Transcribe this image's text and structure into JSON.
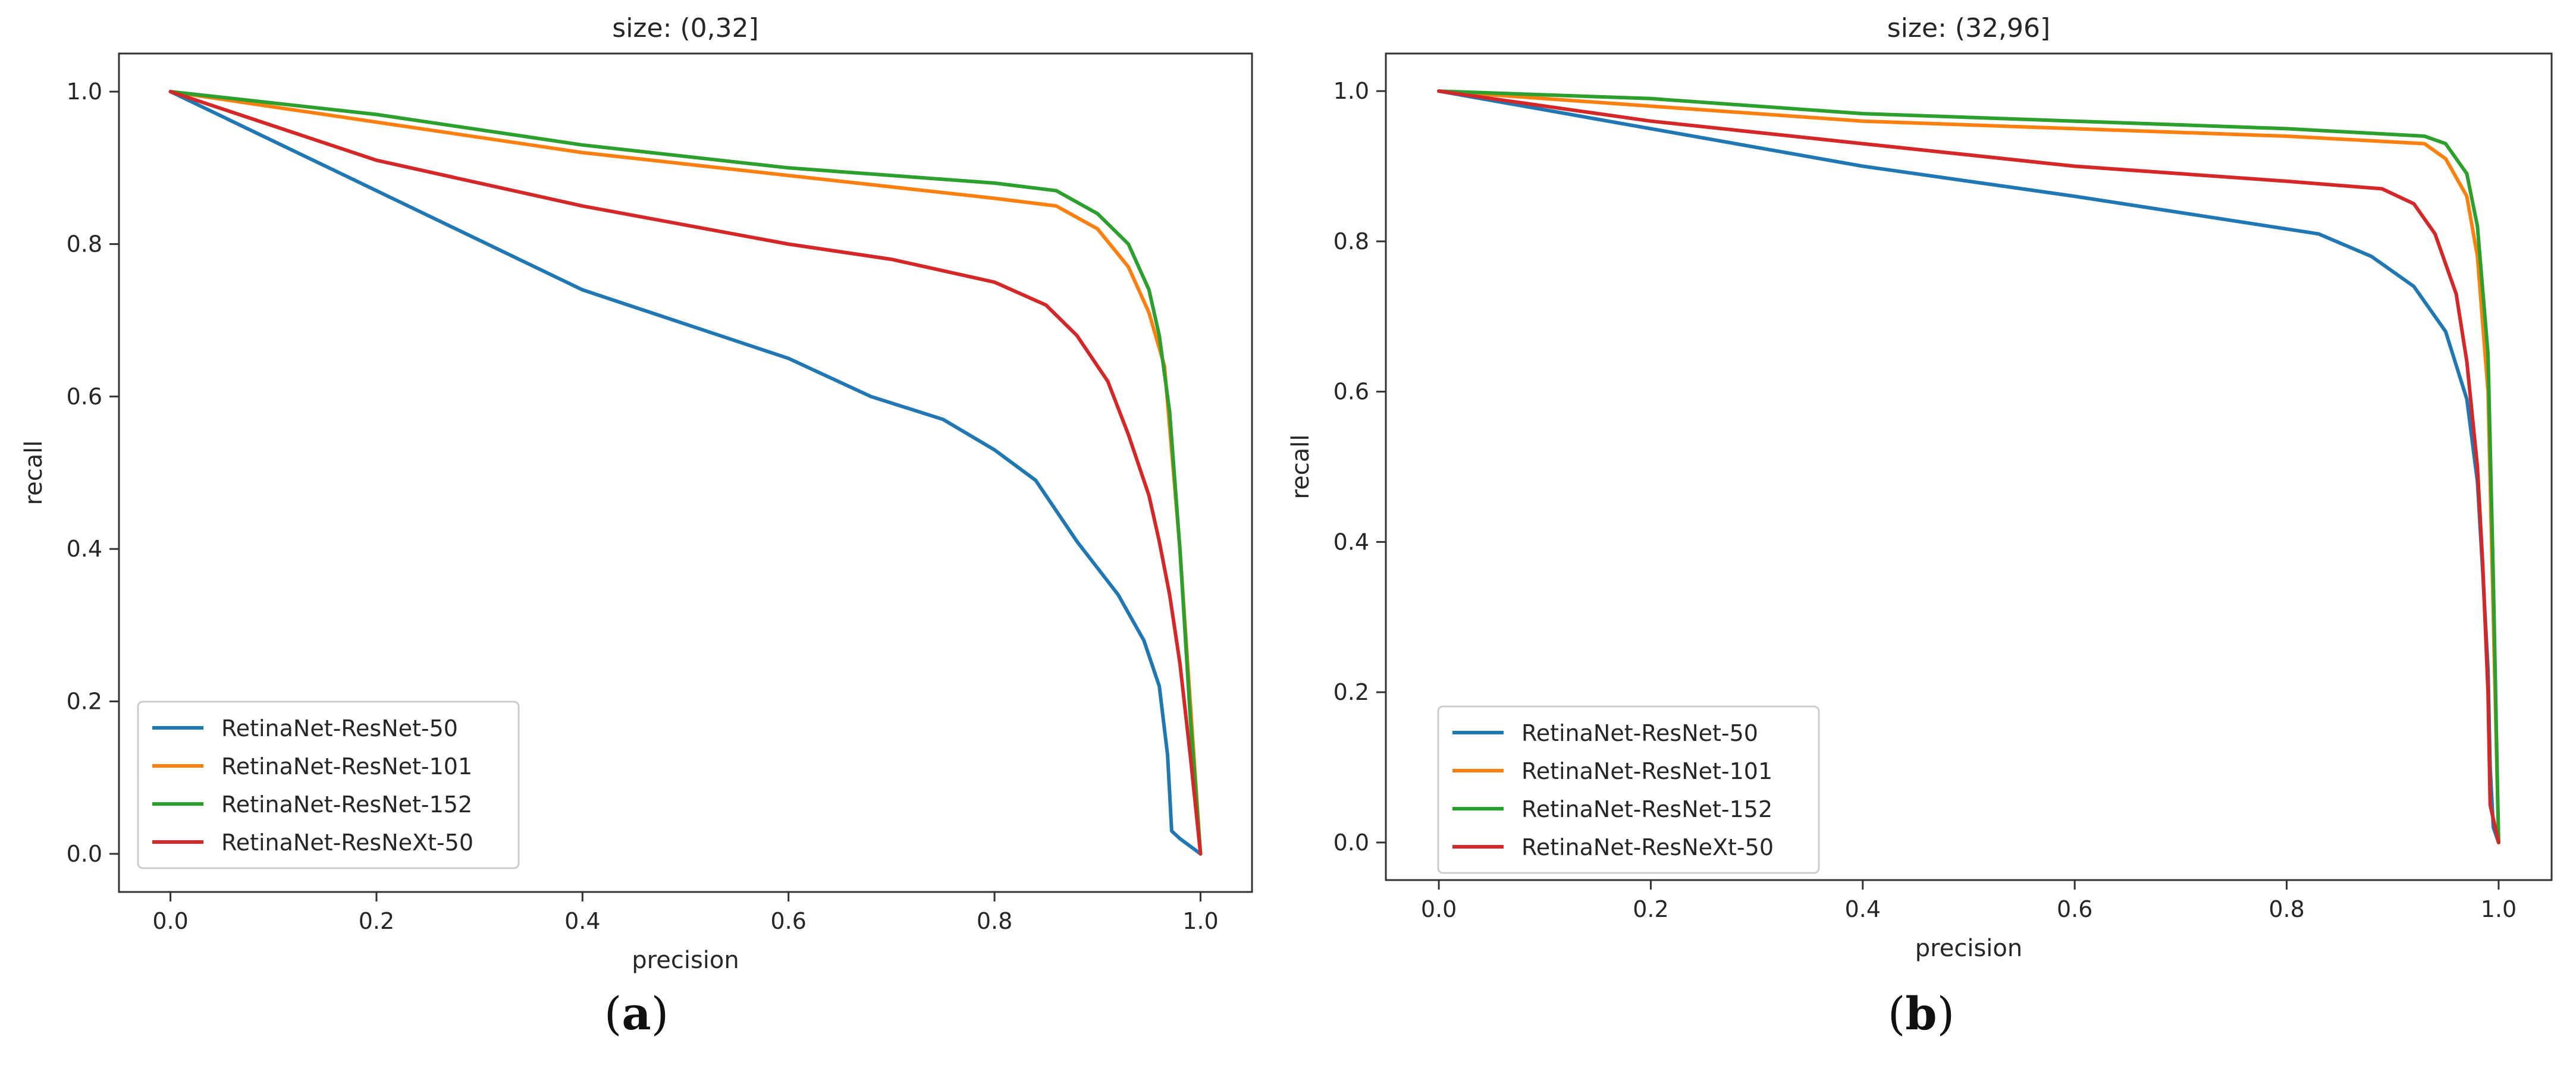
{
  "panels": [
    {
      "caption_open": "(",
      "caption_letter": "a",
      "caption_close": ")"
    },
    {
      "caption_open": "(",
      "caption_letter": "b",
      "caption_close": ")"
    }
  ],
  "chart_data": [
    {
      "type": "line",
      "title": "size: (0,32]",
      "xlabel": "precision",
      "ylabel": "recall",
      "xlim": [
        -0.05,
        1.05
      ],
      "ylim": [
        -0.05,
        1.05
      ],
      "xticks": [
        0.0,
        0.2,
        0.4,
        0.6,
        0.8,
        1.0
      ],
      "yticks": [
        0.0,
        0.2,
        0.4,
        0.6,
        0.8,
        1.0
      ],
      "tick_labels_x": [
        "0.0",
        "0.2",
        "0.4",
        "0.6",
        "0.8",
        "1.0"
      ],
      "tick_labels_y": [
        "0.0",
        "0.2",
        "0.4",
        "0.6",
        "0.8",
        "1.0"
      ],
      "grid": false,
      "legend_position": "lower-left",
      "series": [
        {
          "name": "RetinaNet-ResNet-50",
          "color": "#1f77b4",
          "x": [
            0.0,
            0.2,
            0.4,
            0.6,
            0.68,
            0.75,
            0.8,
            0.84,
            0.88,
            0.92,
            0.945,
            0.96,
            0.968,
            0.97,
            0.972,
            0.98,
            1.0
          ],
          "y": [
            1.0,
            0.87,
            0.74,
            0.65,
            0.6,
            0.57,
            0.53,
            0.49,
            0.41,
            0.34,
            0.28,
            0.22,
            0.13,
            0.08,
            0.03,
            0.02,
            0.0
          ]
        },
        {
          "name": "RetinaNet-ResNet-101",
          "color": "#ff7f0e",
          "x": [
            0.0,
            0.2,
            0.4,
            0.6,
            0.8,
            0.86,
            0.9,
            0.93,
            0.95,
            0.965,
            0.97,
            0.98,
            0.99,
            1.0
          ],
          "y": [
            1.0,
            0.96,
            0.92,
            0.89,
            0.86,
            0.85,
            0.82,
            0.77,
            0.71,
            0.64,
            0.56,
            0.4,
            0.2,
            0.0
          ]
        },
        {
          "name": "RetinaNet-ResNet-152",
          "color": "#2ca02c",
          "x": [
            0.0,
            0.2,
            0.4,
            0.6,
            0.8,
            0.86,
            0.9,
            0.93,
            0.95,
            0.96,
            0.97,
            0.98,
            0.99,
            1.0
          ],
          "y": [
            1.0,
            0.97,
            0.93,
            0.9,
            0.88,
            0.87,
            0.84,
            0.8,
            0.74,
            0.68,
            0.58,
            0.4,
            0.18,
            0.0
          ]
        },
        {
          "name": "RetinaNet-ResNeXt-50",
          "color": "#d62728",
          "x": [
            0.0,
            0.2,
            0.4,
            0.6,
            0.7,
            0.8,
            0.85,
            0.88,
            0.91,
            0.93,
            0.95,
            0.96,
            0.97,
            0.98,
            0.99,
            1.0
          ],
          "y": [
            1.0,
            0.91,
            0.85,
            0.8,
            0.78,
            0.75,
            0.72,
            0.68,
            0.62,
            0.55,
            0.47,
            0.41,
            0.34,
            0.25,
            0.13,
            0.0
          ]
        }
      ]
    },
    {
      "type": "line",
      "title": "size: (32,96]",
      "xlabel": "precision",
      "ylabel": "recall",
      "xlim": [
        -0.05,
        1.05
      ],
      "ylim": [
        -0.05,
        1.05
      ],
      "xticks": [
        0.0,
        0.2,
        0.4,
        0.6,
        0.8,
        1.0
      ],
      "yticks": [
        0.0,
        0.2,
        0.4,
        0.6,
        0.8,
        1.0
      ],
      "tick_labels_x": [
        "0.0",
        "0.2",
        "0.4",
        "0.6",
        "0.8",
        "1.0"
      ],
      "tick_labels_y": [
        "0.0",
        "0.2",
        "0.4",
        "0.6",
        "0.8",
        "1.0"
      ],
      "grid": false,
      "legend_position": "lower-left",
      "series": [
        {
          "name": "RetinaNet-ResNet-50",
          "color": "#1f77b4",
          "x": [
            0.0,
            0.2,
            0.4,
            0.6,
            0.83,
            0.88,
            0.92,
            0.95,
            0.97,
            0.98,
            0.985,
            0.99,
            0.992,
            0.995,
            1.0
          ],
          "y": [
            1.0,
            0.95,
            0.9,
            0.86,
            0.81,
            0.78,
            0.74,
            0.68,
            0.59,
            0.48,
            0.36,
            0.23,
            0.1,
            0.02,
            0.0
          ]
        },
        {
          "name": "RetinaNet-ResNet-101",
          "color": "#ff7f0e",
          "x": [
            0.0,
            0.2,
            0.4,
            0.6,
            0.8,
            0.93,
            0.95,
            0.97,
            0.98,
            0.99,
            0.995,
            1.0
          ],
          "y": [
            1.0,
            0.98,
            0.96,
            0.95,
            0.94,
            0.93,
            0.91,
            0.86,
            0.78,
            0.6,
            0.3,
            0.0
          ]
        },
        {
          "name": "RetinaNet-ResNet-152",
          "color": "#2ca02c",
          "x": [
            0.0,
            0.2,
            0.4,
            0.6,
            0.8,
            0.93,
            0.95,
            0.97,
            0.98,
            0.99,
            0.995,
            1.0
          ],
          "y": [
            1.0,
            0.99,
            0.97,
            0.96,
            0.95,
            0.94,
            0.93,
            0.89,
            0.82,
            0.65,
            0.35,
            0.0
          ]
        },
        {
          "name": "RetinaNet-ResNeXt-50",
          "color": "#d62728",
          "x": [
            0.0,
            0.2,
            0.4,
            0.6,
            0.8,
            0.89,
            0.92,
            0.94,
            0.96,
            0.97,
            0.98,
            0.985,
            0.99,
            0.992,
            1.0
          ],
          "y": [
            1.0,
            0.96,
            0.93,
            0.9,
            0.88,
            0.87,
            0.85,
            0.81,
            0.73,
            0.64,
            0.5,
            0.37,
            0.2,
            0.05,
            0.0
          ]
        }
      ]
    }
  ]
}
